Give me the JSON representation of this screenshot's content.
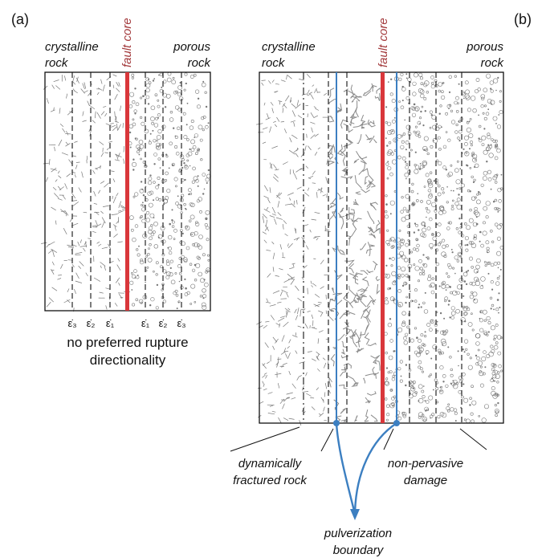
{
  "panel_a": {
    "tag": "(a)",
    "left_label": [
      "crystalline",
      "rock"
    ],
    "right_label": [
      "porous",
      "rock"
    ],
    "core_label": "fault core",
    "strain_labels": [
      "ε̇₃",
      "ε̇₂",
      "ε̇₁",
      "ε̇₁",
      "ε̇₂",
      "ε̇₃"
    ],
    "caption": [
      "no preferred rupture",
      "directionality"
    ]
  },
  "panel_b": {
    "tag": "(b)",
    "left_label": [
      "crystalline",
      "rock"
    ],
    "right_label": [
      "porous",
      "rock"
    ],
    "core_label": "fault core",
    "callout_left": [
      "dynamically",
      "fractured rock"
    ],
    "callout_right": [
      "non-pervasive",
      "damage"
    ],
    "callout_bottom": [
      "pulverization",
      "boundary"
    ]
  },
  "colors": {
    "fault_core": "#d9373b",
    "core_label": "#a33a3c",
    "pulverization": "#3c7fc1",
    "ink": "#111111",
    "grain": "#777777"
  }
}
